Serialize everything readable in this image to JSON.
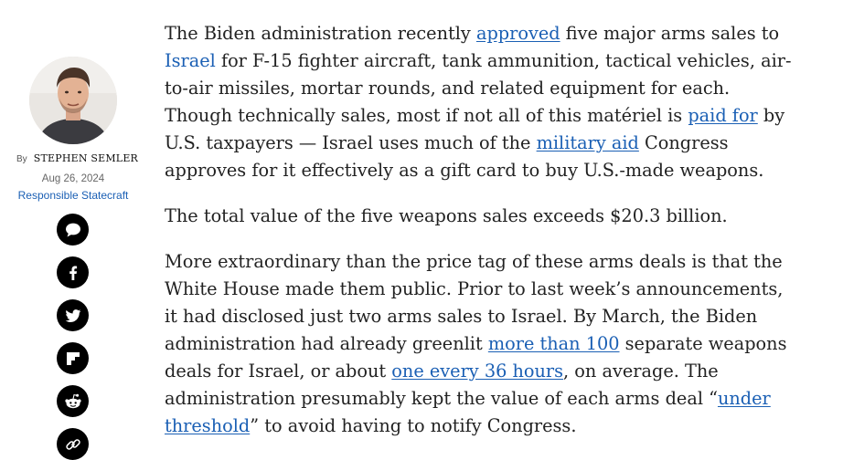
{
  "byline": {
    "by": "By",
    "author": "STEPHEN SEMLER",
    "date": "Aug 26, 2024",
    "source": "Responsible Statecraft"
  },
  "share": [
    {
      "icon": "comment-icon"
    },
    {
      "icon": "facebook-icon"
    },
    {
      "icon": "twitter-icon"
    },
    {
      "icon": "flipboard-icon"
    },
    {
      "icon": "reddit-icon"
    },
    {
      "icon": "link-icon"
    }
  ],
  "article": {
    "p1": {
      "t1": "The Biden administration recently ",
      "l1": "approved",
      "t2": " five major arms sales to ",
      "l2": "Israel",
      "t3": " for F-15 fighter aircraft, tank ammunition, tactical vehicles, air-to-air missiles, mortar rounds, and related equipment for each. Though technically sales, most if not all of this matériel is ",
      "l3": "paid for",
      "t4": " by U.S. taxpayers — Israel uses much of the ",
      "l4": "military aid",
      "t5": " Congress approves for it effectively as a gift card to buy U.S.-made weapons."
    },
    "p2": "The total value of the five weapons sales exceeds $20.3 billion.",
    "p3": {
      "t1": "More extraordinary than the price tag of these arms deals is that the White House made them public. Prior to last week’s announcements, it had disclosed just two arms sales to Israel. By March, the Biden administration had already greenlit ",
      "l1": "more than 100",
      "t2": " separate weapons deals for Israel, or about ",
      "l2": "one every 36 hours",
      "t3": ", on average. The administration presumably kept the value of each arms deal “",
      "l3": "under threshold",
      "t4": "” to avoid having to notify Congress."
    }
  }
}
